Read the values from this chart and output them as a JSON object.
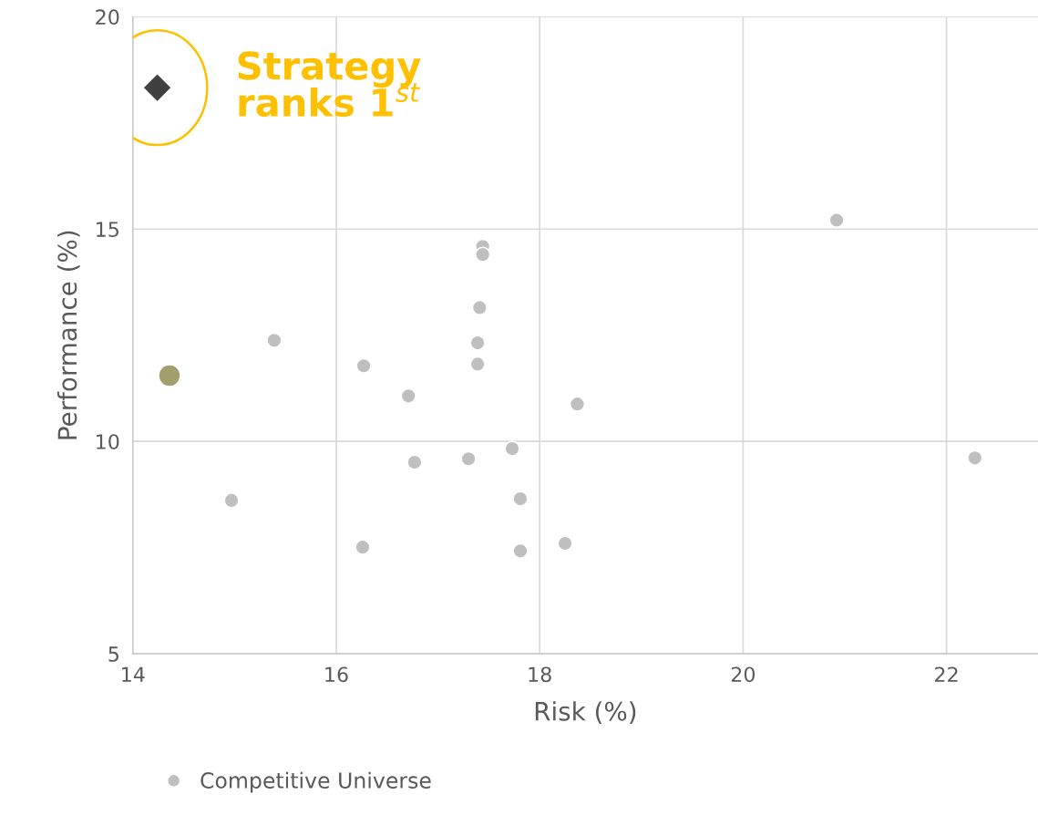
{
  "chart_data": {
    "type": "scatter",
    "xlabel": "Risk (%)",
    "ylabel": "Performance (%)",
    "xlim": [
      14,
      22.9
    ],
    "xticks": [
      14,
      16,
      18,
      20,
      22
    ],
    "ylim": [
      5,
      20
    ],
    "yticks": [
      5,
      10,
      15,
      20
    ],
    "grid": true,
    "legend": "bottom",
    "series": [
      {
        "color": "#404040",
        "marker": "diamond",
        "x": [
          14.24
        ],
        "values": [
          18.33
        ]
      },
      {
        "color": "#a39e6e",
        "marker": "circle",
        "x": [
          14.36
        ],
        "values": [
          11.55
        ]
      },
      {
        "name": "Competitive Universe",
        "color": "#bfbfbf",
        "marker": "circle",
        "x": [
          20.92,
          17.44,
          17.44,
          17.41,
          17.39,
          17.39,
          15.39,
          16.27,
          16.71,
          18.37,
          17.73,
          17.3,
          16.77,
          22.28,
          14.97,
          17.81,
          16.26,
          17.81,
          18.25
        ],
        "values": [
          15.21,
          14.59,
          14.4,
          13.15,
          12.32,
          11.82,
          12.38,
          11.78,
          11.07,
          10.88,
          9.83,
          9.59,
          9.51,
          9.61,
          8.61,
          8.65,
          7.51,
          7.42,
          7.6
        ]
      }
    ],
    "annotations": [
      {
        "text": "Strategy\nranks 1$^{st}$",
        "x": 14.24,
        "y": 18.33
      }
    ]
  }
}
